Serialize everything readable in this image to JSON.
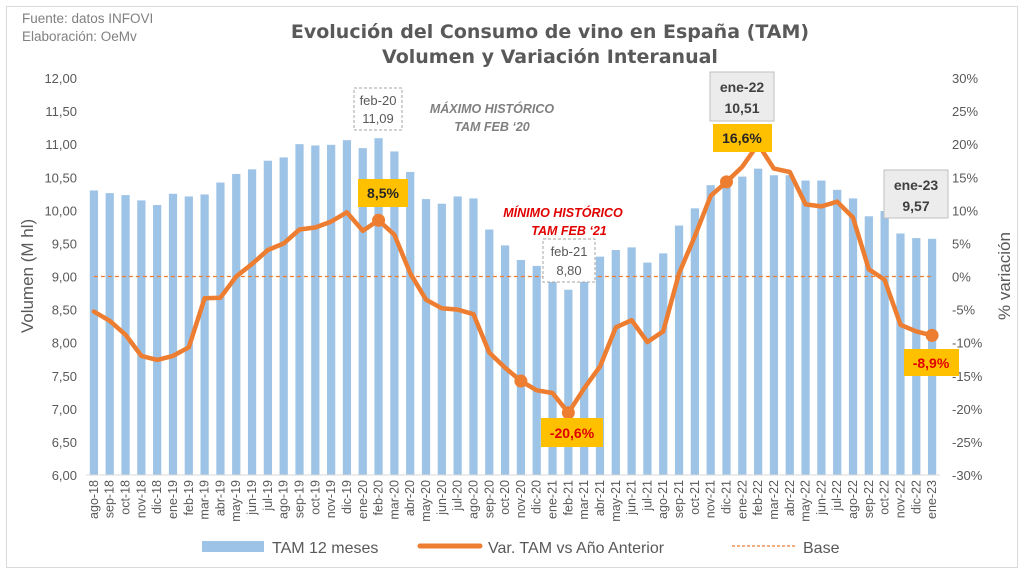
{
  "source_lines": [
    "Fuente: datos INFOVI",
    "Elaboración: OeMv"
  ],
  "colors": {
    "bar": "#9dc3e6",
    "line": "#ed7d31",
    "base": "#ed7d31",
    "callout_yellow": "#ffc000",
    "negative_tick": "#c00000",
    "annotation_red": "#e00000"
  },
  "chart_data": {
    "type": "bar+line",
    "title": "Evolución del Consumo de vino en España (TAM)",
    "subtitle": "Volumen y Variación Interanual",
    "ylabel": "Volumen (M hl)",
    "y2label": "% variación",
    "ylim": [
      6.0,
      12.0
    ],
    "y2lim": [
      -30,
      30
    ],
    "yticks": [
      "12,00",
      "11,50",
      "11,00",
      "10,50",
      "10,00",
      "9,50",
      "9,00",
      "8,50",
      "8,00",
      "7,50",
      "7,00",
      "6,50",
      "6,00"
    ],
    "y2ticks": [
      "30%",
      "25%",
      "20%",
      "15%",
      "10%",
      "5%",
      "0%",
      "-5%",
      "-10%",
      "-15%",
      "-20%",
      "-25%",
      "-30%"
    ],
    "categories": [
      "ago-18",
      "sep-18",
      "oct-18",
      "nov-18",
      "dic-18",
      "ene-19",
      "feb-19",
      "mar-19",
      "abr-19",
      "may-19",
      "jun-19",
      "jul-19",
      "ago-19",
      "sep-19",
      "oct-19",
      "nov-19",
      "dic-19",
      "ene-20",
      "feb-20",
      "mar-20",
      "abr-20",
      "may-20",
      "jun-20",
      "jul-20",
      "ago-20",
      "sep-20",
      "oct-20",
      "nov-20",
      "dic-20",
      "ene-21",
      "feb-21",
      "mar-21",
      "abr-21",
      "may-21",
      "jun-21",
      "jul-21",
      "ago-21",
      "sep-21",
      "oct-21",
      "nov-21",
      "dic-21",
      "ene-22",
      "feb-22",
      "mar-22",
      "abr-22",
      "may-22",
      "jun-22",
      "jul-22",
      "ago-22",
      "sep-22",
      "oct-22",
      "nov-22",
      "dic-22",
      "ene-23"
    ],
    "series": [
      {
        "name": "TAM 12 meses",
        "type": "bar",
        "axis": "left",
        "values": [
          10.3,
          10.26,
          10.23,
          10.15,
          10.08,
          10.25,
          10.21,
          10.24,
          10.42,
          10.55,
          10.62,
          10.75,
          10.8,
          11.0,
          10.98,
          10.99,
          11.06,
          10.94,
          11.09,
          10.89,
          10.58,
          10.17,
          10.1,
          10.21,
          10.18,
          9.71,
          9.47,
          9.25,
          9.16,
          9.18,
          8.8,
          9.15,
          9.3,
          9.4,
          9.44,
          9.21,
          9.35,
          9.77,
          10.03,
          10.38,
          10.41,
          10.51,
          10.63,
          10.53,
          10.53,
          10.45,
          10.45,
          10.31,
          10.18,
          9.91,
          9.99,
          9.65,
          9.58,
          9.57
        ]
      },
      {
        "name": "Var. TAM vs Año Anterior",
        "type": "line",
        "axis": "right",
        "values": [
          -5.3,
          -6.7,
          -8.8,
          -12.0,
          -12.6,
          -12.0,
          -10.7,
          -3.3,
          -3.2,
          0.0,
          1.9,
          4.0,
          5.0,
          7.1,
          7.4,
          8.3,
          9.7,
          6.9,
          8.5,
          6.3,
          0.5,
          -3.5,
          -4.8,
          -5.0,
          -5.7,
          -11.5,
          -13.8,
          -15.8,
          -17.2,
          -17.6,
          -20.6,
          -16.9,
          -13.6,
          -7.7,
          -6.6,
          -9.9,
          -8.3,
          0.5,
          6.1,
          12.2,
          14.3,
          16.6,
          20.0,
          16.3,
          15.8,
          10.9,
          10.6,
          11.3,
          8.9,
          1.1,
          -0.5,
          -7.3,
          -8.3,
          -8.9
        ]
      },
      {
        "name": "Base",
        "type": "line",
        "axis": "right",
        "style": "dashed",
        "values_constant": 0
      }
    ],
    "legend": [
      "TAM 12 meses",
      "Var. TAM vs Año Anterior",
      "Base"
    ],
    "legend_position": "bottom",
    "annotations": {
      "max_box": {
        "label": "feb-20",
        "value": "11,09"
      },
      "max_text": [
        "MÁXIMO HISTÓRICO",
        "TAM FEB ‘20"
      ],
      "min_box": {
        "label": "feb-21",
        "value": "8,80"
      },
      "min_text": [
        "MÍNIMO HISTÓRICO",
        "TAM FEB ‘21"
      ],
      "ene22_box": {
        "label": "ene-22",
        "value": "10,51"
      },
      "ene23_box": {
        "label": "ene-23",
        "value": "9,57"
      },
      "pct_feb20": "8,5%",
      "pct_feb21": "-20,6%",
      "pct_ene22": "16,6%",
      "pct_ene23": "-8,9%"
    }
  }
}
